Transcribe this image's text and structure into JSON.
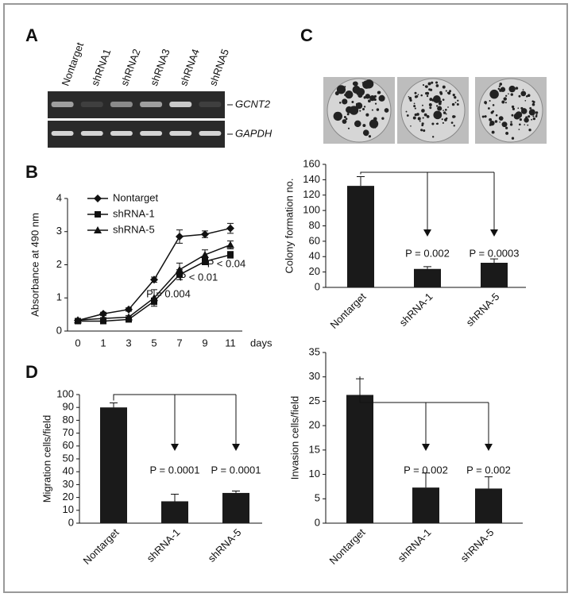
{
  "panel_labels": [
    "A",
    "B",
    "C",
    "D"
  ],
  "gel": {
    "lanes": [
      "Nontarget",
      "shRNA1",
      "shRNA2",
      "shRNA3",
      "shRNA4",
      "shRNA5"
    ],
    "genes": [
      "GCNT2",
      "GAPDH"
    ]
  },
  "chart_data": [
    {
      "type": "line",
      "categories": [
        "0",
        "1",
        "3",
        "5",
        "7",
        "9",
        "11"
      ],
      "xlabel": "days",
      "ylabel": "Absorbance at 490 nm",
      "ylim": [
        0,
        4
      ],
      "yticks": [
        0,
        1,
        2,
        3,
        4
      ],
      "series": [
        {
          "name": "Nontarget",
          "color": "#111111",
          "marker": "diamond",
          "values": [
            0.32,
            0.52,
            0.65,
            1.55,
            2.85,
            2.92,
            3.1
          ],
          "errors": [
            0.05,
            0.05,
            0.05,
            0.08,
            0.2,
            0.1,
            0.15
          ]
        },
        {
          "name": "shRNA-1",
          "color": "#111111",
          "marker": "square",
          "values": [
            0.3,
            0.3,
            0.35,
            0.9,
            1.7,
            2.1,
            2.3
          ],
          "errors": [
            0.03,
            0.03,
            0.03,
            0.1,
            0.15,
            0.1,
            0.1
          ]
        },
        {
          "name": "shRNA-5",
          "color": "#111111",
          "marker": "triangle",
          "values": [
            0.33,
            0.38,
            0.42,
            1.0,
            1.85,
            2.3,
            2.6
          ],
          "errors": [
            0.03,
            0.03,
            0.05,
            0.25,
            0.2,
            0.15,
            0.12
          ]
        }
      ],
      "annotations": [
        "P < 0.04",
        "P < 0.01",
        "P = 0.004"
      ]
    },
    {
      "type": "bar",
      "categories": [
        "Nontarget",
        "shRNA-1",
        "shRNA-5"
      ],
      "ylabel": "Colony formation no.",
      "values": [
        132,
        24,
        32
      ],
      "errors": [
        12,
        3,
        5
      ],
      "color": "#1a1a1a",
      "ylim": [
        0,
        160
      ],
      "yticks": [
        0,
        20,
        40,
        60,
        80,
        100,
        120,
        140,
        160
      ],
      "annotations": [
        "P = 0.002",
        "P = 0.0003"
      ]
    },
    {
      "type": "bar",
      "categories": [
        "Nontarget",
        "shRNA-1",
        "shRNA-5"
      ],
      "ylabel": "Migration cells/field",
      "values": [
        90,
        17,
        23.5
      ],
      "errors": [
        3.5,
        5.5,
        1.5
      ],
      "color": "#1a1a1a",
      "ylim": [
        0,
        100
      ],
      "yticks": [
        0,
        10,
        20,
        30,
        40,
        50,
        60,
        70,
        80,
        90,
        100
      ],
      "annotations": [
        "P = 0.0001",
        "P = 0.0001"
      ]
    },
    {
      "type": "bar",
      "categories": [
        "Nontarget",
        "shRNA-1",
        "shRNA-5"
      ],
      "ylabel": "Invasion cells/field",
      "values": [
        26.3,
        7.3,
        7.1
      ],
      "errors": [
        3.3,
        3,
        2.4
      ],
      "color": "#1a1a1a",
      "ylim": [
        0,
        35
      ],
      "yticks": [
        0,
        5,
        10,
        15,
        20,
        25,
        30,
        35
      ],
      "annotations": [
        "P = 0.002",
        "P = 0.002"
      ]
    }
  ]
}
